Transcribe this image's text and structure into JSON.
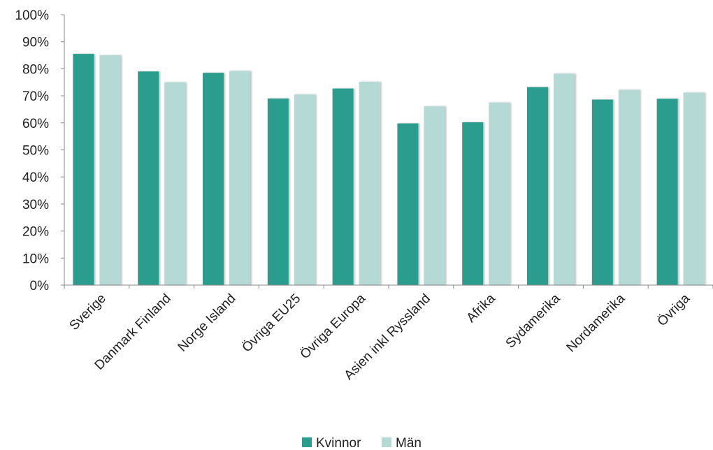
{
  "chart_data": {
    "type": "bar",
    "categories": [
      "Sverige",
      "Danmark Finland",
      "Norge Island",
      "Övriga EU25",
      "Övriga Europa",
      "Asien inkl Ryssland",
      "Afrika",
      "Sydamerika",
      "Nordamerika",
      "Övriga"
    ],
    "series": [
      {
        "name": "Kvinnor",
        "color": "#2a9d8f",
        "values": [
          85.5,
          79,
          78.5,
          69,
          72.7,
          59.8,
          60.2,
          73.2,
          68.6,
          68.9
        ]
      },
      {
        "name": "Män",
        "color": "#b5d9d5",
        "values": [
          85,
          75,
          79.2,
          70.5,
          75.2,
          66.1,
          67.5,
          78.2,
          72.2,
          71.2
        ]
      }
    ],
    "yticks": [
      "0%",
      "10%",
      "20%",
      "30%",
      "40%",
      "50%",
      "60%",
      "70%",
      "80%",
      "90%",
      "100%"
    ],
    "ylim": [
      0,
      100
    ],
    "grid": false,
    "legend": "bottom-center"
  }
}
